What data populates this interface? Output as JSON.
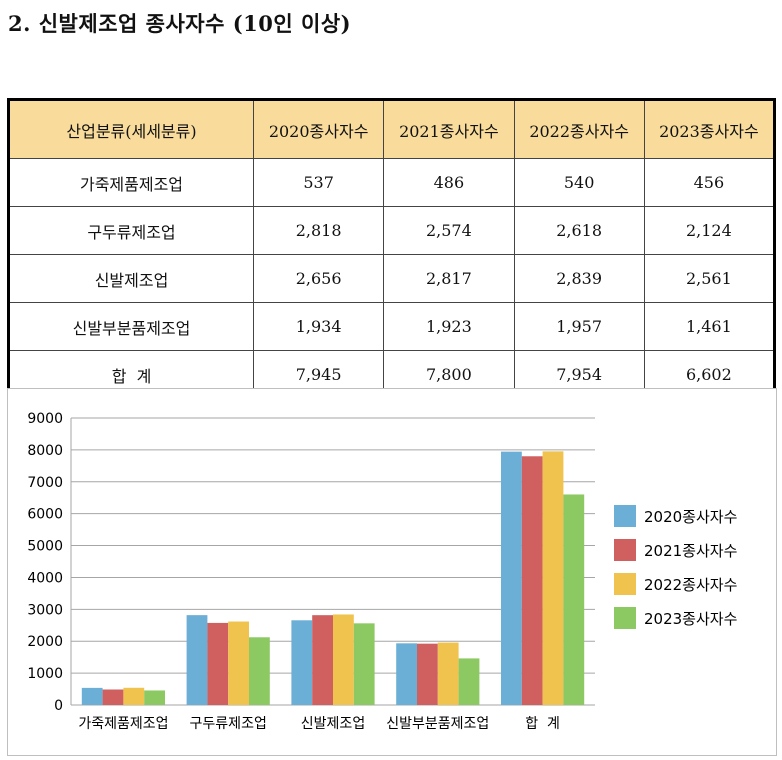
{
  "title": "2. 신발제조업 종사자수 (10인 이상)",
  "table": {
    "headers": [
      "산업분류(세세분류)",
      "2020종사자수",
      "2021종사자수",
      "2022종사자수",
      "2023종사자수"
    ],
    "rows": [
      [
        "가죽제품제조업",
        "537",
        "486",
        "540",
        "456"
      ],
      [
        "구두류제조업",
        "2,818",
        "2,574",
        "2,618",
        "2,124"
      ],
      [
        "신발제조업",
        "2,656",
        "2,817",
        "2,839",
        "2,561"
      ],
      [
        "신발부분품제조업",
        "1,934",
        "1,923",
        "1,957",
        "1,461"
      ],
      [
        "합  계",
        "7,945",
        "7,800",
        "7,954",
        "6,602"
      ]
    ]
  },
  "chart_data": {
    "type": "bar",
    "categories": [
      "가죽제품제조업",
      "구두류제조업",
      "신발제조업",
      "신발부분품제조업",
      "합  계"
    ],
    "series": [
      {
        "name": "2020종사자수",
        "color": "#6baed6",
        "values": [
          537,
          2818,
          2656,
          1934,
          7945
        ]
      },
      {
        "name": "2021종사자수",
        "color": "#d05f5f",
        "values": [
          486,
          2574,
          2817,
          1923,
          7800
        ]
      },
      {
        "name": "2022종사자수",
        "color": "#f0c34e",
        "values": [
          540,
          2618,
          2839,
          1957,
          7954
        ]
      },
      {
        "name": "2023종사자수",
        "color": "#8cc963",
        "values": [
          456,
          2124,
          2561,
          1461,
          6602
        ]
      }
    ],
    "ylim": [
      0,
      9000
    ],
    "yticks": [
      0,
      1000,
      2000,
      3000,
      4000,
      5000,
      6000,
      7000,
      8000,
      9000
    ],
    "grid": true,
    "legend": "right"
  }
}
